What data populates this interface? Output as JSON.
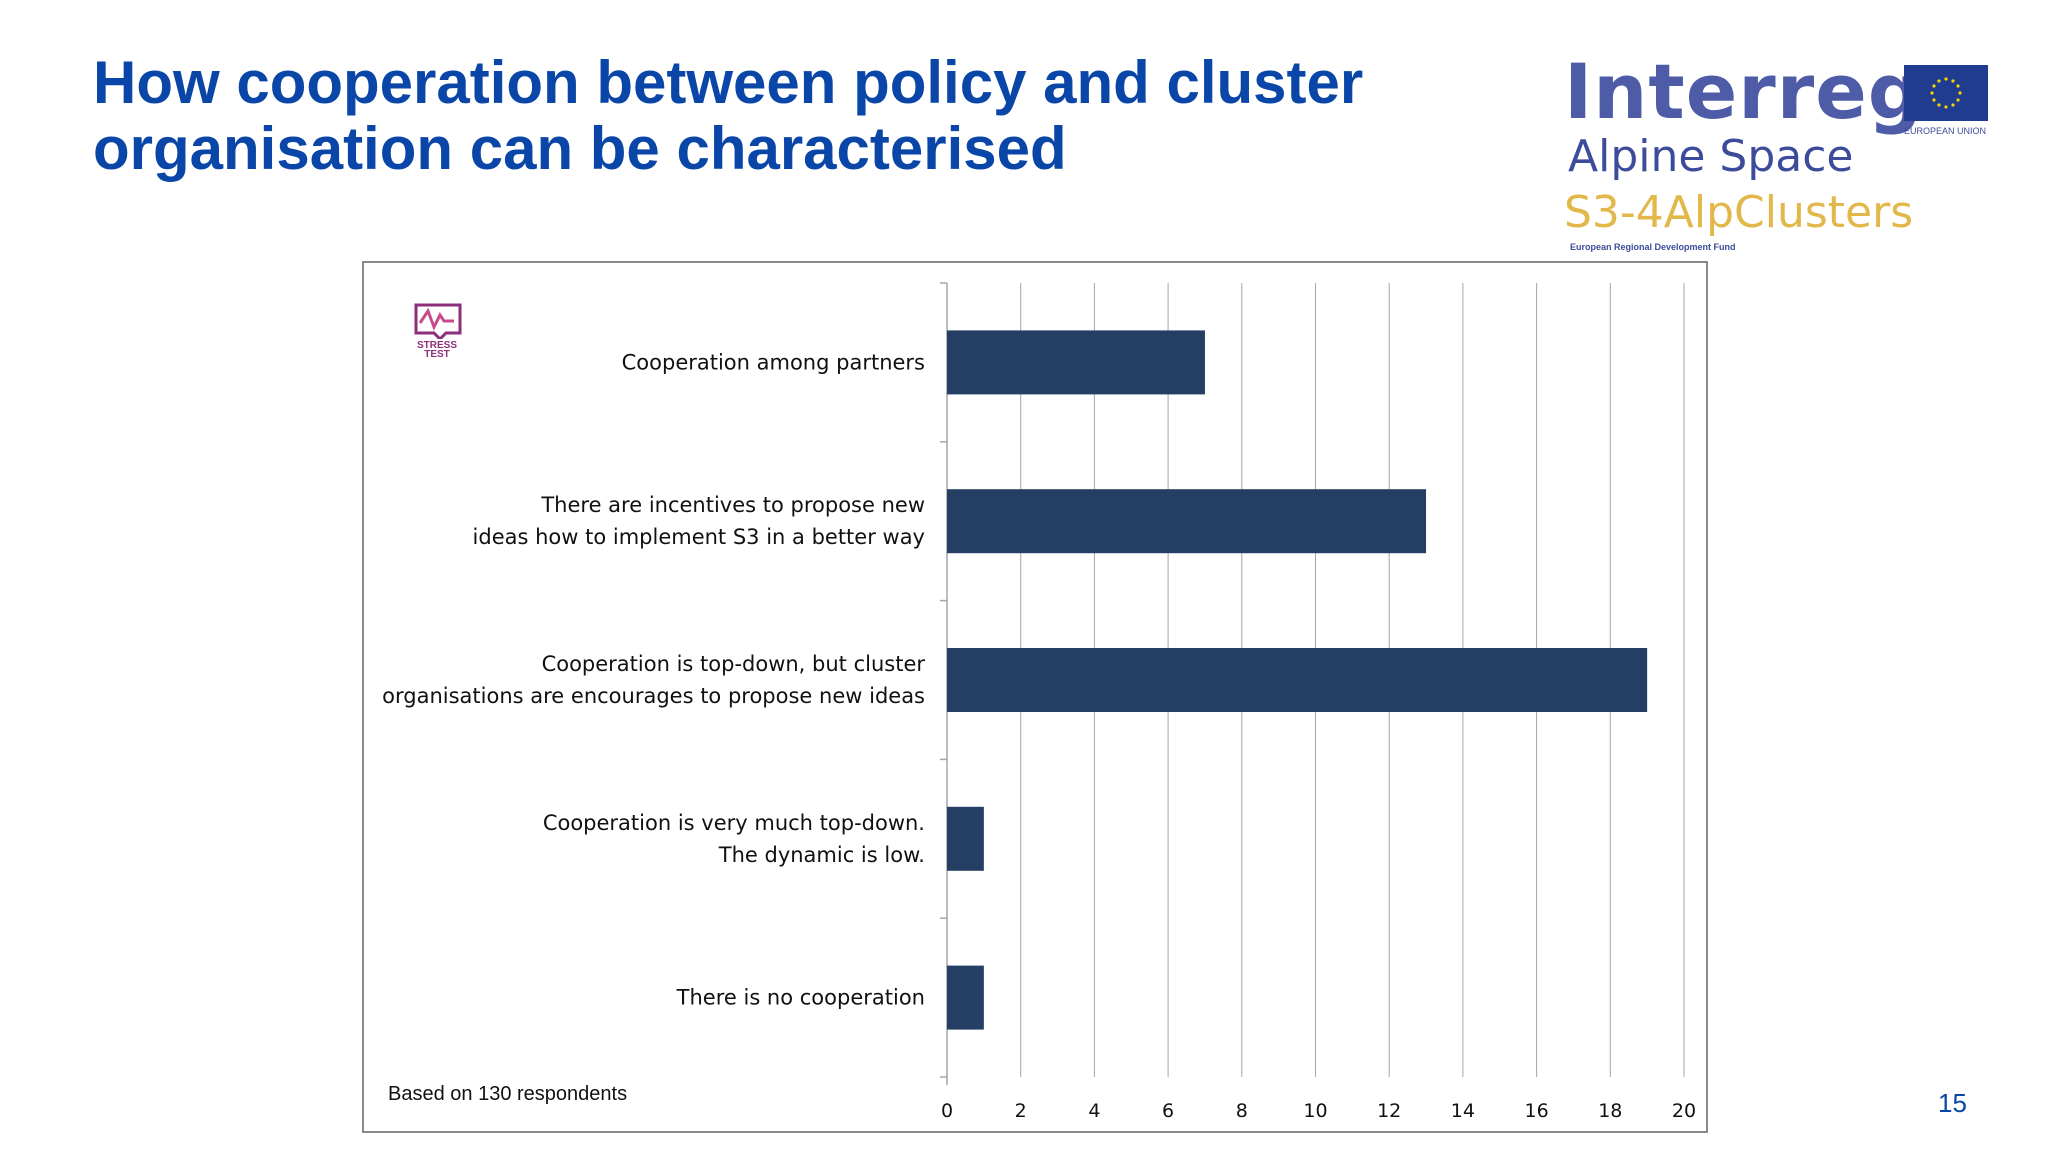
{
  "slide": {
    "title": "How cooperation between policy and cluster organisation can be characterised",
    "page_number": "15"
  },
  "logos": {
    "interreg": "Interreg",
    "alpine_space": "Alpine Space",
    "project": "S3-4AlpClusters",
    "fund": "European Regional Development Fund",
    "eu_label": "EUROPEAN UNION",
    "stress_test": "STRESS TEST"
  },
  "chart_data": {
    "type": "bar",
    "orientation": "horizontal",
    "categories": [
      "Cooperation among partners",
      "There are incentives to propose new\nideas how to implement S3 in a better way",
      "Cooperation is top-down, but cluster\norganisations are encourages to propose new ideas",
      "Cooperation is very much top-down.\nThe dynamic is low.",
      "There is no cooperation"
    ],
    "values": [
      7,
      13,
      19,
      1,
      1
    ],
    "xlim": [
      0,
      20
    ],
    "xticks": [
      0,
      2,
      4,
      6,
      8,
      10,
      12,
      14,
      16,
      18,
      20
    ],
    "grid": true,
    "bar_color": "#243f63",
    "note": "Based on 130 respondents"
  },
  "colors": {
    "title": "#0a46a8",
    "gridline": "#a6a6a6"
  }
}
